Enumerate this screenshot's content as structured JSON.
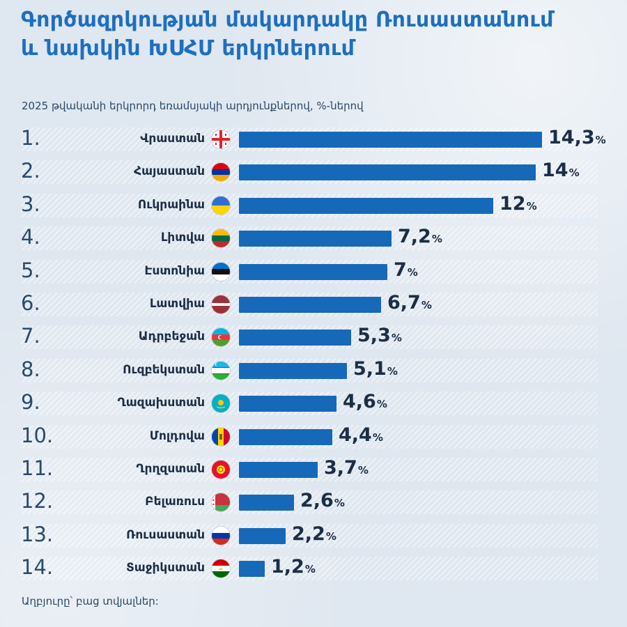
{
  "title_line1": "Գործազրկության մակարդակը Ռուսաստանում",
  "title_line2": "և նախկին ԽՍՀՄ երկրներում",
  "subtitle": "2025 թվականի երկրորդ եռամսյակի արդյունքներով, %-ներով",
  "source": "Աղբյուրը՝ բաց տվյալներ:",
  "colors": {
    "bar": "#1669b8",
    "title": "#1d6fbf",
    "background": "#dfe7f0"
  },
  "chart_data": {
    "type": "bar",
    "orientation": "horizontal",
    "title": "Գործազրկության մակարդակը Ռուսաստանում և նախկին ԽՍՀՄ երկրներում",
    "subtitle": "2025 թվականի երկրորդ եռամսյակի արդյունքներով, %-ներով",
    "unit": "%",
    "xlim": [
      0,
      14.3
    ],
    "grid": false,
    "rows": [
      {
        "rank": "1.",
        "country": "Վրաստան",
        "value": 14.3,
        "label": "14,3",
        "flag": "georgia-flag-icon"
      },
      {
        "rank": "2.",
        "country": "Հայաստան",
        "value": 14,
        "label": "14",
        "flag": "armenia-flag-icon"
      },
      {
        "rank": "3.",
        "country": "Ուկրաինա",
        "value": 12,
        "label": "12",
        "flag": "ukraine-flag-icon"
      },
      {
        "rank": "4.",
        "country": "Լիտվա",
        "value": 7.2,
        "label": "7,2",
        "flag": "lithuania-flag-icon"
      },
      {
        "rank": "5.",
        "country": "Էստոնիա",
        "value": 7,
        "label": "7",
        "flag": "estonia-flag-icon"
      },
      {
        "rank": "6.",
        "country": "Լատվիա",
        "value": 6.7,
        "label": "6,7",
        "flag": "latvia-flag-icon"
      },
      {
        "rank": "7.",
        "country": "Ադրբեջան",
        "value": 5.3,
        "label": "5,3",
        "flag": "azerbaijan-flag-icon"
      },
      {
        "rank": "8.",
        "country": "Ուզբեկստան",
        "value": 5.1,
        "label": "5,1",
        "flag": "uzbekistan-flag-icon"
      },
      {
        "rank": "9.",
        "country": "Ղազախստան",
        "value": 4.6,
        "label": "4,6",
        "flag": "kazakhstan-flag-icon"
      },
      {
        "rank": "10.",
        "country": "Մոլդովա",
        "value": 4.4,
        "label": "4,4",
        "flag": "moldova-flag-icon"
      },
      {
        "rank": "11.",
        "country": "Ղրղզստան",
        "value": 3.7,
        "label": "3,7",
        "flag": "kyrgyzstan-flag-icon"
      },
      {
        "rank": "12.",
        "country": "Բելառուս",
        "value": 2.6,
        "label": "2,6",
        "flag": "belarus-flag-icon"
      },
      {
        "rank": "13.",
        "country": "Ռուսաստան",
        "value": 2.2,
        "label": "2,2",
        "flag": "russia-flag-icon"
      },
      {
        "rank": "14.",
        "country": "Տաջիկստան",
        "value": 1.2,
        "label": "1,2",
        "flag": "tajikistan-flag-icon"
      }
    ]
  }
}
